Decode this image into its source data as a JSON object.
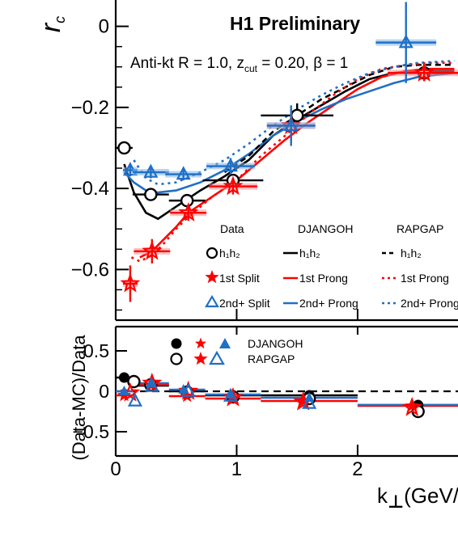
{
  "colors": {
    "data": "#000000",
    "djangoh": "#ff0000",
    "rapgap": "#1f6fc5",
    "band_red": "#ff8c8c",
    "band_blue": "#7fb2e8"
  },
  "texts": {
    "experiment": "H1 Preliminary",
    "selection": "Anti-kt R = 1.0, z",
    "selection_sub": "cut",
    "selection_tail": " = 0.20, β = 1",
    "ylabel_main": "r",
    "ylabel_main_sub": "c",
    "ylabel_ratio": "(Data-MC)/Data",
    "xlabel": "k",
    "xlabel_tail": "(GeV/"
  },
  "legend": {
    "head_data": "Data",
    "head_djangoh": "DJANGOH",
    "head_rapgap": "RAPGAP",
    "rows": [
      {
        "data": "h₁h₂",
        "djangoh": "h₁h₂",
        "rapgap": "h₁h₂"
      },
      {
        "data": "1st Split",
        "djangoh": "1st Prong",
        "rapgap": "1st Prong"
      },
      {
        "data": "2nd+ Split",
        "djangoh": "2nd+ Prong",
        "rapgap": "2nd+ Prong"
      }
    ],
    "ratio": [
      "DJANGOH",
      "RAPGAP"
    ]
  },
  "chart_data": [
    {
      "type": "scatter",
      "title": "H1 Preliminary",
      "xlim": [
        0,
        2.83
      ],
      "ylim": [
        -0.725,
        0.065
      ],
      "yticks": [
        0,
        -0.2,
        -0.4,
        -0.6
      ],
      "ytick_labels": [
        "0",
        "−0.2",
        "−0.4",
        "−0.6"
      ],
      "xticks": [
        0,
        1,
        2
      ],
      "series": [
        {
          "name": "h₁h₂",
          "marker": "open-circle",
          "x": [
            0.07,
            0.29,
            0.59,
            0.97,
            1.5,
            2.55
          ],
          "y": [
            -0.3,
            -0.415,
            -0.43,
            -0.38,
            -0.22,
            -0.115
          ],
          "xerr": [
            0.07,
            0.15,
            0.15,
            0.25,
            0.3,
            0.3
          ],
          "yerr": [
            0.0,
            0.015,
            0.015,
            0.015,
            0.03,
            0.02
          ]
        },
        {
          "name": "1st Split",
          "marker": "star",
          "x": [
            0.12,
            0.3,
            0.6,
            0.97,
            1.45,
            2.55
          ],
          "y": [
            -0.635,
            -0.555,
            -0.46,
            -0.395,
            -0.245,
            -0.115
          ],
          "xerr": [
            0.06,
            0.15,
            0.15,
            0.2,
            0.2,
            0.3
          ],
          "yerr": [
            0.045,
            0.03,
            0.02,
            0.02,
            0.04,
            0.02
          ]
        },
        {
          "name": "2nd+ Split",
          "marker": "open-triangle",
          "x": [
            0.12,
            0.29,
            0.56,
            0.95,
            1.45,
            2.4
          ],
          "y": [
            -0.355,
            -0.36,
            -0.365,
            -0.345,
            -0.245,
            -0.04
          ],
          "xerr": [
            0.06,
            0.15,
            0.15,
            0.2,
            0.2,
            0.25
          ],
          "yerr": [
            0.015,
            0.015,
            0.015,
            0.02,
            0.05,
            0.1
          ]
        }
      ],
      "curves": [
        {
          "name": "DJANGOH h₁h₂",
          "style": "solid",
          "color": "#000000",
          "x": [
            0.07,
            0.15,
            0.25,
            0.35,
            0.5,
            0.7,
            0.9,
            1.1,
            1.3,
            1.5,
            1.7,
            1.9,
            2.1,
            2.3,
            2.5,
            2.8
          ],
          "y": [
            -0.34,
            -0.41,
            -0.46,
            -0.475,
            -0.445,
            -0.405,
            -0.37,
            -0.33,
            -0.27,
            -0.23,
            -0.195,
            -0.16,
            -0.13,
            -0.115,
            -0.11,
            -0.11
          ]
        },
        {
          "name": "DJANGOH 1st Prong",
          "style": "solid",
          "color": "#ff0000",
          "x": [
            0.2,
            0.3,
            0.4,
            0.5,
            0.6,
            0.8,
            1.0,
            1.2,
            1.4,
            1.6,
            1.8,
            2.0,
            2.2,
            2.4,
            2.6,
            2.8
          ],
          "y": [
            -0.57,
            -0.555,
            -0.525,
            -0.495,
            -0.46,
            -0.42,
            -0.38,
            -0.33,
            -0.28,
            -0.235,
            -0.195,
            -0.155,
            -0.125,
            -0.11,
            -0.105,
            -0.105
          ]
        },
        {
          "name": "DJANGOH 2nd+ Prong",
          "style": "solid",
          "color": "#1f6fc5",
          "x": [
            0.07,
            0.15,
            0.25,
            0.35,
            0.5,
            0.7,
            0.9,
            1.1,
            1.3,
            1.5,
            1.7,
            1.9,
            2.1,
            2.3,
            2.5,
            2.8
          ],
          "y": [
            -0.36,
            -0.385,
            -0.405,
            -0.41,
            -0.405,
            -0.385,
            -0.355,
            -0.315,
            -0.27,
            -0.235,
            -0.205,
            -0.18,
            -0.16,
            -0.14,
            -0.125,
            -0.115
          ]
        },
        {
          "name": "RAPGAP h₁h₂",
          "style": "dashed",
          "color": "#000000",
          "x": [
            0.9,
            1.1,
            1.3,
            1.5,
            1.7,
            1.9,
            2.1,
            2.3,
            2.5,
            2.8
          ],
          "y": [
            -0.36,
            -0.32,
            -0.26,
            -0.22,
            -0.18,
            -0.15,
            -0.12,
            -0.1,
            -0.095,
            -0.095
          ]
        },
        {
          "name": "RAPGAP 1st Prong",
          "style": "dotted",
          "color": "#ff0000",
          "x": [
            0.13,
            0.2,
            0.3,
            0.4,
            0.5,
            0.6,
            0.8,
            1.0,
            1.2,
            1.4,
            1.6,
            1.8,
            2.0,
            2.2,
            2.4,
            2.6,
            2.8
          ],
          "y": [
            -0.57,
            -0.58,
            -0.565,
            -0.535,
            -0.5,
            -0.47,
            -0.42,
            -0.38,
            -0.32,
            -0.27,
            -0.215,
            -0.17,
            -0.13,
            -0.105,
            -0.095,
            -0.09,
            -0.09
          ]
        },
        {
          "name": "RAPGAP 2nd+ Prong",
          "style": "dotted",
          "color": "#1f6fc5",
          "x": [
            0.15,
            0.25,
            0.35,
            0.5,
            0.7,
            0.9,
            1.1,
            1.3,
            1.5,
            1.7,
            1.9,
            2.1,
            2.3,
            2.5,
            2.8
          ],
          "y": [
            -0.33,
            -0.375,
            -0.39,
            -0.385,
            -0.36,
            -0.33,
            -0.29,
            -0.245,
            -0.205,
            -0.17,
            -0.14,
            -0.115,
            -0.1,
            -0.09,
            -0.085
          ]
        }
      ]
    },
    {
      "type": "scatter",
      "ylabel": "(Data-MC)/Data",
      "xlabel": "k",
      "xlim": [
        0,
        2.83
      ],
      "ylim": [
        -0.8,
        0.8
      ],
      "yticks": [
        0.5,
        0,
        -0.5
      ],
      "ytick_labels": [
        "0.5",
        "0",
        "−0.5"
      ],
      "xticks": [
        0,
        1,
        2
      ],
      "xtick_labels": [
        "0",
        "1",
        "2"
      ],
      "series": [
        {
          "name": "DJANGOH h₁h₂",
          "marker": "filled-circle",
          "color": "#000000",
          "x": [
            0.07,
            0.29,
            0.59,
            0.97,
            1.6,
            2.5
          ],
          "y": [
            0.17,
            0.07,
            0.0,
            -0.05,
            -0.05,
            -0.17
          ]
        },
        {
          "name": "RAPGAP h₁h₂",
          "marker": "open-circle",
          "color": "#000000",
          "x": [
            0.15,
            0.29,
            0.59,
            0.97,
            1.6,
            2.5
          ],
          "y": [
            0.12,
            0.08,
            -0.01,
            -0.07,
            -0.09,
            -0.25
          ]
        },
        {
          "name": "DJANGOH 1st",
          "marker": "filled-star",
          "color": "#ff0000",
          "x": [
            0.07,
            0.29,
            0.59,
            0.97,
            1.55,
            2.45
          ],
          "y": [
            -0.05,
            0.08,
            -0.06,
            -0.09,
            -0.12,
            -0.18
          ]
        },
        {
          "name": "RAPGAP 1st",
          "marker": "star",
          "color": "#ff0000",
          "x": [
            0.12,
            0.3,
            0.6,
            0.97,
            1.55,
            2.45
          ],
          "y": [
            -0.02,
            0.1,
            0.0,
            -0.08,
            -0.13,
            -0.2
          ]
        },
        {
          "name": "DJANGOH 2nd+",
          "marker": "filled-triangle",
          "color": "#1f6fc5",
          "x": [
            0.07,
            0.29,
            0.56,
            0.95,
            1.6
          ],
          "y": [
            0.0,
            0.1,
            0.02,
            -0.04,
            -0.08
          ]
        },
        {
          "name": "RAPGAP 2nd+",
          "marker": "open-triangle",
          "color": "#1f6fc5",
          "x": [
            0.16,
            0.3,
            0.6,
            0.95,
            1.6
          ],
          "y": [
            -0.12,
            0.06,
            0.0,
            -0.06,
            -0.15
          ]
        }
      ]
    }
  ]
}
